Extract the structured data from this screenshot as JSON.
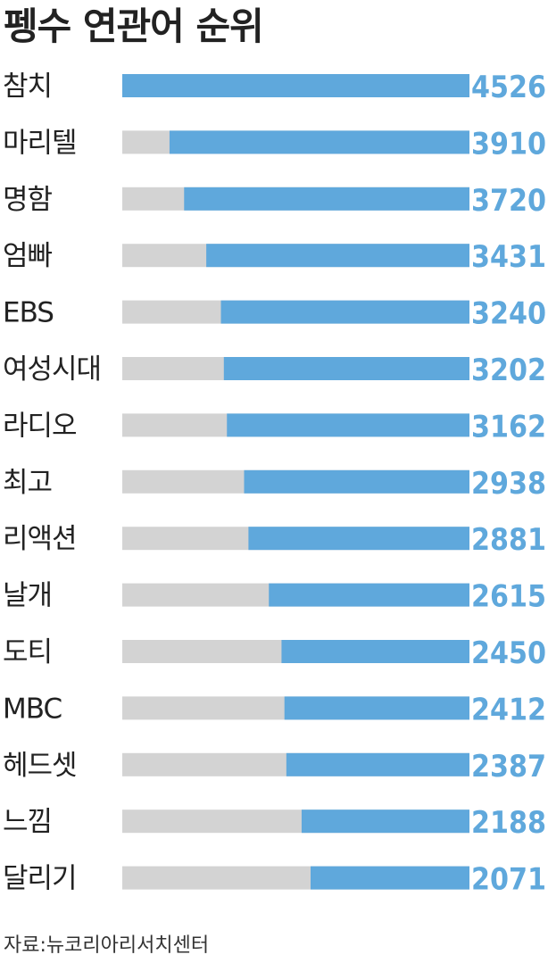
{
  "title": "펭수 연관어 순위",
  "source": "자료:뉴코리아리서치센터",
  "colors": {
    "bar": "#5fa8dc",
    "track": "#d3d3d3",
    "value": "#5fa8dc",
    "label": "#222222"
  },
  "chart_data": {
    "type": "bar",
    "orientation": "horizontal",
    "title": "펭수 연관어 순위",
    "categories": [
      "참치",
      "마리텔",
      "명함",
      "엄빠",
      "EBS",
      "여성시대",
      "라디오",
      "최고",
      "리액션",
      "날개",
      "도티",
      "MBC",
      "헤드셋",
      "느낌",
      "달리기"
    ],
    "values": [
      4526,
      3910,
      3720,
      3431,
      3240,
      3202,
      3162,
      2938,
      2881,
      2615,
      2450,
      2412,
      2387,
      2188,
      2071
    ],
    "xlim": [
      0,
      4526
    ],
    "grid": false,
    "legend": "none"
  }
}
